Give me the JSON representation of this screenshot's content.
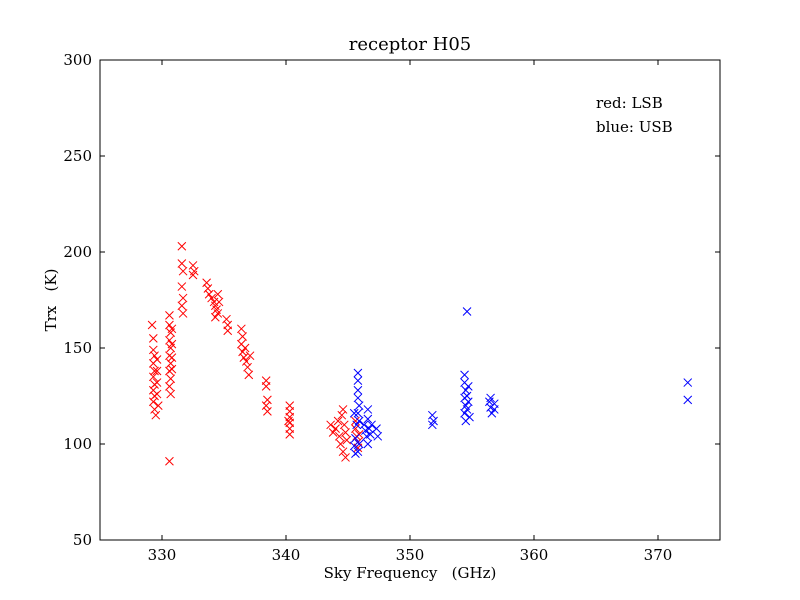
{
  "chart_data": {
    "type": "scatter",
    "title": "receptor H05",
    "xlabel": "Sky Frequency   (GHz)",
    "ylabel": "Trx   (K)",
    "xlim": [
      325,
      375
    ],
    "ylim": [
      50,
      300
    ],
    "xticks": [
      330,
      340,
      350,
      360,
      370
    ],
    "yticks": [
      50,
      100,
      150,
      200,
      250,
      300
    ],
    "marker": "x",
    "grid": false,
    "annotations": [
      "red: LSB",
      "blue: USB"
    ],
    "series": [
      {
        "color": "#ff0000",
        "points": [
          [
            329.2,
            162
          ],
          [
            329.3,
            155
          ],
          [
            329.3,
            149
          ],
          [
            329.4,
            146
          ],
          [
            329.3,
            142
          ],
          [
            329.4,
            138
          ],
          [
            329.3,
            135
          ],
          [
            329.4,
            131
          ],
          [
            329.3,
            128
          ],
          [
            329.4,
            125
          ],
          [
            329.3,
            122
          ],
          [
            329.4,
            118
          ],
          [
            329.5,
            115
          ],
          [
            329.6,
            144
          ],
          [
            329.6,
            138
          ],
          [
            329.6,
            132
          ],
          [
            329.6,
            126
          ],
          [
            329.7,
            120
          ],
          [
            330.6,
            167
          ],
          [
            330.6,
            162
          ],
          [
            330.7,
            158
          ],
          [
            330.6,
            154
          ],
          [
            330.7,
            150
          ],
          [
            330.6,
            146
          ],
          [
            330.7,
            142
          ],
          [
            330.6,
            138
          ],
          [
            330.7,
            134
          ],
          [
            330.6,
            130
          ],
          [
            330.7,
            126
          ],
          [
            330.8,
            160
          ],
          [
            330.8,
            152
          ],
          [
            330.8,
            145
          ],
          [
            330.8,
            139
          ],
          [
            330.6,
            91
          ],
          [
            331.6,
            203
          ],
          [
            331.6,
            194
          ],
          [
            331.7,
            190
          ],
          [
            331.6,
            182
          ],
          [
            331.7,
            176
          ],
          [
            331.6,
            172
          ],
          [
            331.7,
            168
          ],
          [
            332.5,
            193
          ],
          [
            332.6,
            190
          ],
          [
            332.5,
            188
          ],
          [
            333.6,
            184
          ],
          [
            333.7,
            181
          ],
          [
            333.8,
            178
          ],
          [
            334.0,
            176
          ],
          [
            334.2,
            174
          ],
          [
            334.3,
            172
          ],
          [
            334.4,
            170
          ],
          [
            334.5,
            168
          ],
          [
            334.3,
            166
          ],
          [
            334.6,
            174
          ],
          [
            334.5,
            178
          ],
          [
            335.2,
            165
          ],
          [
            335.3,
            162
          ],
          [
            335.3,
            159
          ],
          [
            336.4,
            160
          ],
          [
            336.5,
            156
          ],
          [
            336.4,
            152
          ],
          [
            336.5,
            148
          ],
          [
            336.6,
            145
          ],
          [
            336.7,
            150
          ],
          [
            336.8,
            143
          ],
          [
            336.9,
            140
          ],
          [
            337.0,
            136
          ],
          [
            337.1,
            146
          ],
          [
            338.4,
            133
          ],
          [
            338.4,
            130
          ],
          [
            338.5,
            123
          ],
          [
            338.4,
            120
          ],
          [
            338.5,
            117
          ],
          [
            340.3,
            120
          ],
          [
            340.3,
            117
          ],
          [
            340.3,
            114
          ],
          [
            340.3,
            111
          ],
          [
            340.3,
            108
          ],
          [
            340.3,
            105
          ],
          [
            340.2,
            112
          ],
          [
            343.6,
            110
          ],
          [
            343.8,
            106
          ],
          [
            344.0,
            108
          ],
          [
            344.2,
            112
          ],
          [
            344.3,
            104
          ],
          [
            344.4,
            100
          ],
          [
            344.5,
            115
          ],
          [
            344.6,
            118
          ],
          [
            344.7,
            110
          ],
          [
            344.8,
            106
          ],
          [
            344.8,
            93
          ],
          [
            344.9,
            102
          ],
          [
            344.6,
            96
          ],
          [
            345.6,
            108
          ],
          [
            345.7,
            104
          ],
          [
            345.8,
            101
          ],
          [
            345.9,
            105
          ],
          [
            345.6,
            112
          ],
          [
            345.8,
            98
          ]
        ]
      },
      {
        "color": "#0000ff",
        "points": [
          [
            345.5,
            116
          ],
          [
            345.6,
            103
          ],
          [
            345.7,
            110
          ],
          [
            345.8,
            137
          ],
          [
            345.8,
            133
          ],
          [
            345.8,
            128
          ],
          [
            345.8,
            124
          ],
          [
            345.9,
            120
          ],
          [
            345.8,
            116
          ],
          [
            345.9,
            112
          ],
          [
            345.8,
            96
          ],
          [
            345.9,
            100
          ],
          [
            345.5,
            99
          ],
          [
            345.6,
            95
          ],
          [
            346.3,
            110
          ],
          [
            346.4,
            107
          ],
          [
            346.5,
            104
          ],
          [
            346.6,
            118
          ],
          [
            346.6,
            113
          ],
          [
            346.7,
            108
          ],
          [
            346.6,
            100
          ],
          [
            346.8,
            105
          ],
          [
            346.9,
            110
          ],
          [
            347.3,
            108
          ],
          [
            347.4,
            104
          ],
          [
            351.8,
            115
          ],
          [
            351.9,
            112
          ],
          [
            351.8,
            110
          ],
          [
            354.4,
            136
          ],
          [
            354.4,
            132
          ],
          [
            354.5,
            128
          ],
          [
            354.4,
            124
          ],
          [
            354.5,
            120
          ],
          [
            354.4,
            116
          ],
          [
            354.5,
            112
          ],
          [
            354.6,
            125
          ],
          [
            354.6,
            118
          ],
          [
            354.7,
            130
          ],
          [
            354.7,
            122
          ],
          [
            354.8,
            114
          ],
          [
            354.6,
            169
          ],
          [
            356.4,
            122
          ],
          [
            356.5,
            119
          ],
          [
            356.6,
            116
          ],
          [
            356.5,
            124
          ],
          [
            356.8,
            121
          ],
          [
            356.8,
            118
          ],
          [
            372.4,
            132
          ],
          [
            372.4,
            123
          ]
        ]
      }
    ]
  }
}
